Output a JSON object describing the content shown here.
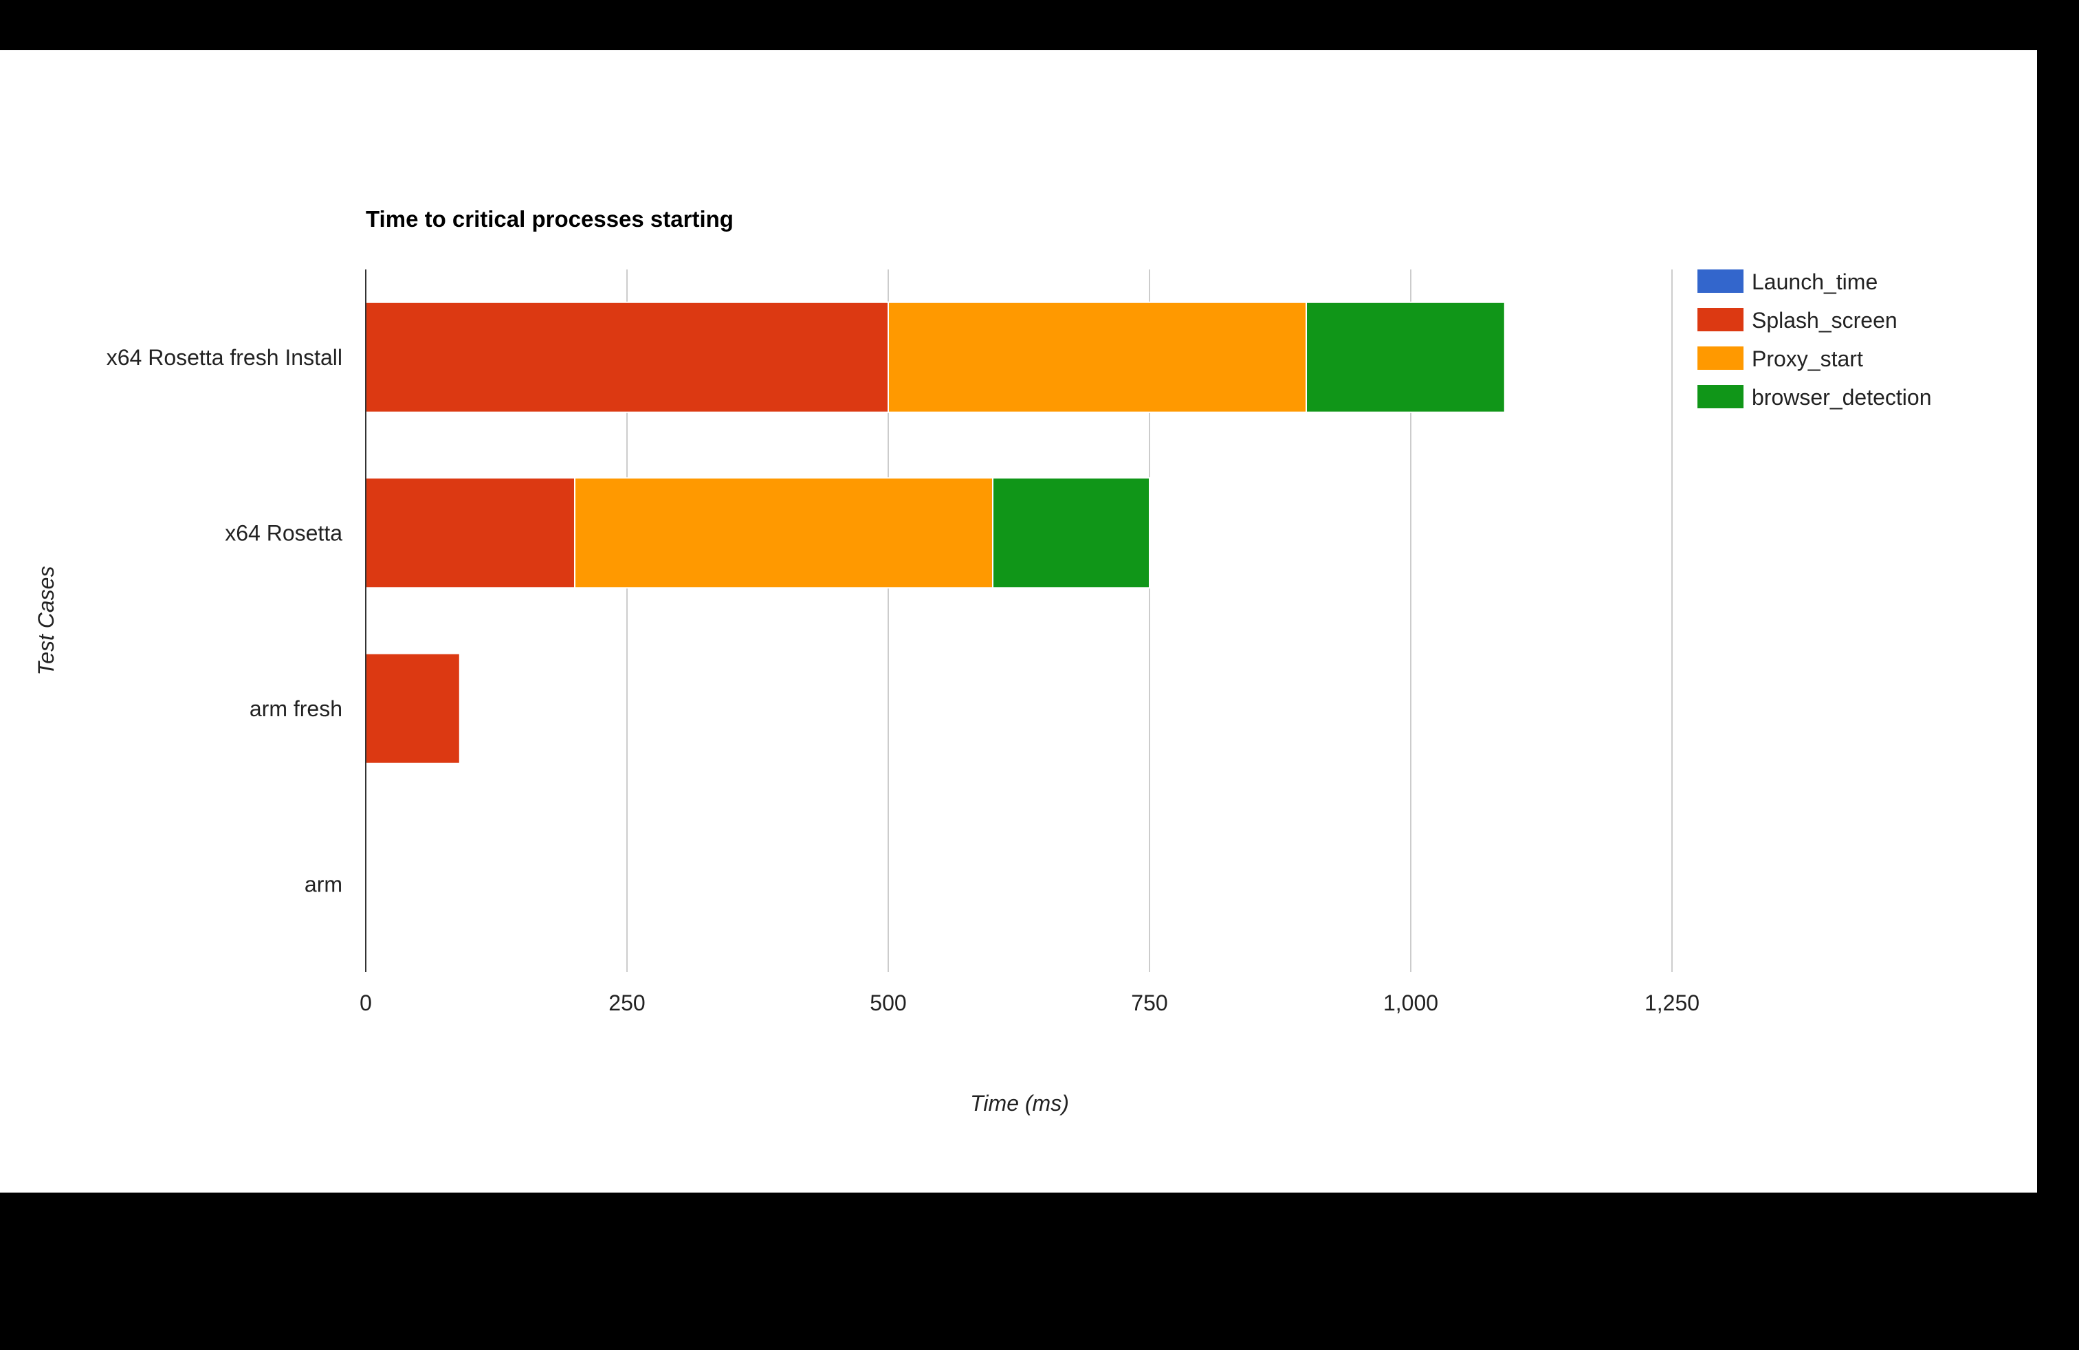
{
  "chart_data": {
    "type": "bar",
    "orientation": "horizontal",
    "stacked": true,
    "title": "Time to critical processes starting",
    "xlabel": "Time (ms)",
    "ylabel": "Test Cases",
    "categories": [
      "x64 Rosetta fresh Install",
      "x64 Rosetta",
      "arm fresh",
      "arm"
    ],
    "series": [
      {
        "name": "Launch_time",
        "color": "#3366cc",
        "values": [
          0,
          0,
          0,
          0
        ]
      },
      {
        "name": "Splash_screen",
        "color": "#dc3912",
        "values": [
          500,
          200,
          90,
          0
        ]
      },
      {
        "name": "Proxy_start",
        "color": "#ff9900",
        "values": [
          400,
          400,
          0,
          0
        ]
      },
      {
        "name": "browser_detection",
        "color": "#109618",
        "values": [
          190,
          150,
          0,
          0
        ]
      }
    ],
    "xlim": [
      0,
      1250
    ],
    "xticks": [
      0,
      250,
      500,
      750,
      1000,
      1250
    ],
    "xtick_labels": [
      "0",
      "250",
      "500",
      "750",
      "1,000",
      "1,250"
    ],
    "grid": true,
    "legend_position": "right"
  }
}
